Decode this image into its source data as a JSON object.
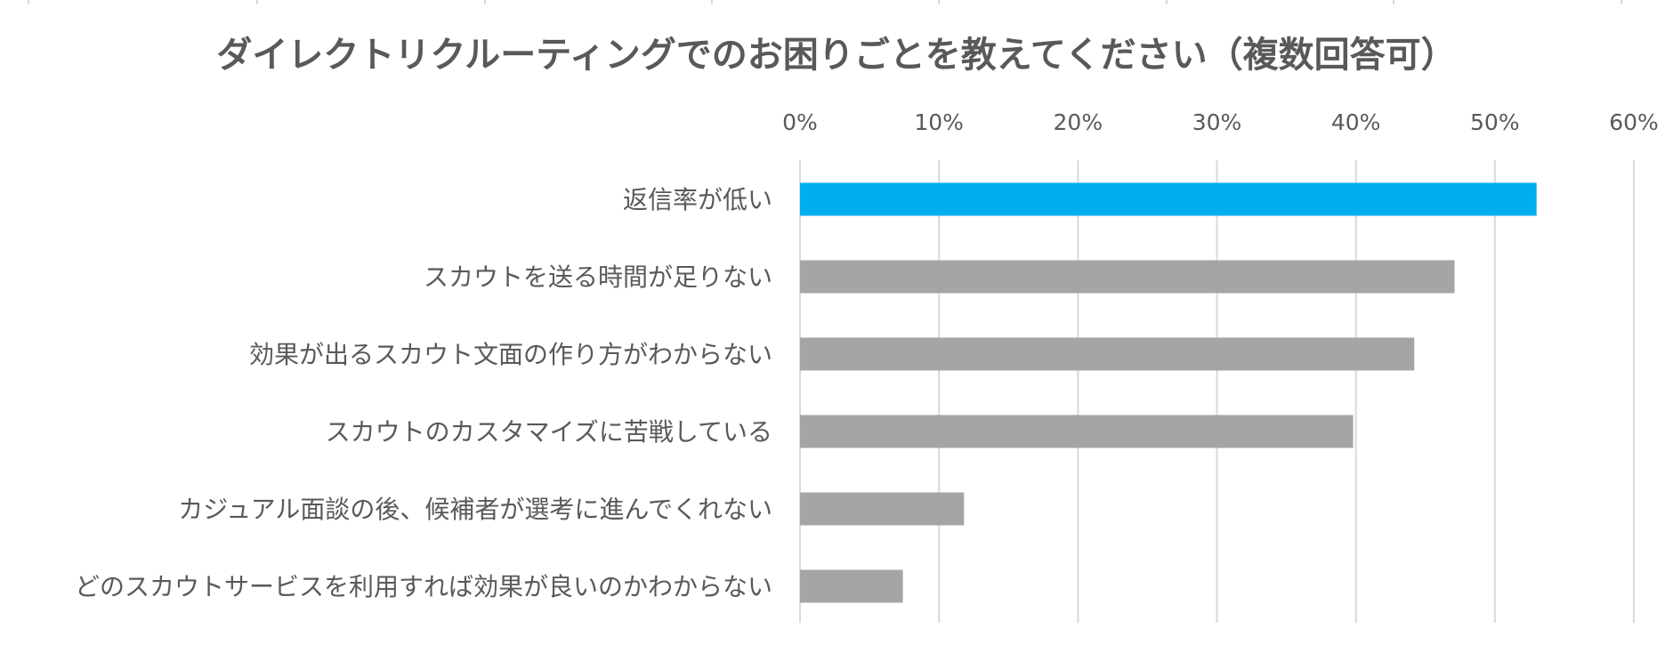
{
  "chart_data": {
    "type": "bar",
    "orientation": "horizontal",
    "title": "ダイレクトリクルーティングでのお困りごとを教えてください（複数回答可）",
    "xlabel": "",
    "ylabel": "",
    "xlim": [
      0,
      60
    ],
    "tick_values": [
      0,
      10,
      20,
      30,
      40,
      50,
      60
    ],
    "tick_labels": [
      "0%",
      "10%",
      "20%",
      "30%",
      "40%",
      "50%",
      "60%"
    ],
    "axis_position": "top",
    "grid": true,
    "categories": [
      "返信率が低い",
      "スカウトを送る時間が足りない",
      "効果が出るスカウト文面の作り方がわからない",
      "スカウトのカスタマイズに苦戦している",
      "カジュアル面談の後、候補者が選考に進んでくれない",
      "どのスカウトサービスを利用すれば効果が良いのかわからない"
    ],
    "values": [
      53,
      47.1,
      44.2,
      39.8,
      11.8,
      7.4
    ],
    "highlight_index": 0,
    "colors": {
      "highlight": "#00AEEF",
      "default": "#A5A5A5",
      "grid": "#D9D9D9",
      "text": "#595959"
    }
  }
}
